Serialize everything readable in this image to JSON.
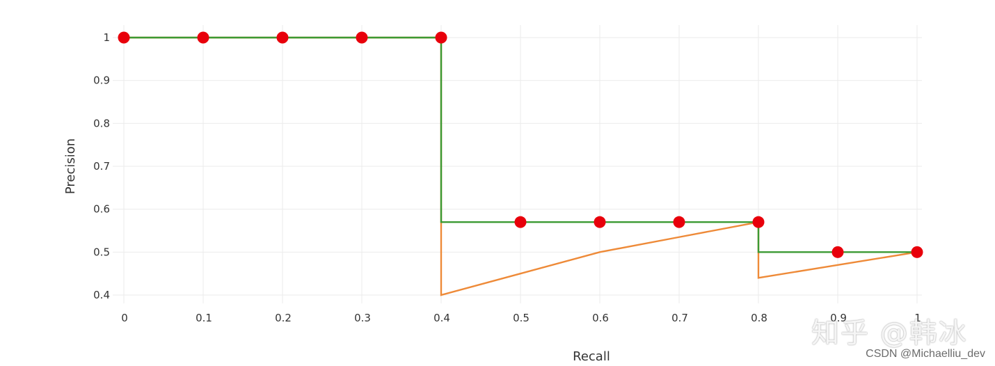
{
  "chart_data": {
    "type": "line",
    "title": "",
    "xlabel": "Recall",
    "ylabel": "Precision",
    "xlim": [
      0,
      1
    ],
    "ylim": [
      0.4,
      1
    ],
    "grid": true,
    "x_ticks": [
      "0",
      "0.1",
      "0.2",
      "0.3",
      "0.4",
      "0.5",
      "0.6",
      "0.7",
      "0.8",
      "0.9",
      "1"
    ],
    "y_ticks": [
      "0.4",
      "0.5",
      "0.6",
      "0.7",
      "0.8",
      "0.9",
      "1"
    ],
    "series": [
      {
        "kind": "line",
        "color": "#ee8a38",
        "x": [
          0,
          0.1,
          0.2,
          0.3,
          0.4,
          0.4,
          0.5,
          0.6,
          0.7,
          0.8,
          0.8,
          0.9,
          1
        ],
        "y": [
          1,
          1,
          1,
          1,
          1,
          0.4,
          0.45,
          0.5,
          0.535,
          0.57,
          0.44,
          0.47,
          0.5
        ]
      },
      {
        "kind": "step",
        "color": "#3b9a33",
        "x": [
          0,
          0.4,
          0.4,
          0.8,
          0.8,
          1
        ],
        "y": [
          1,
          1,
          0.57,
          0.57,
          0.5,
          0.5
        ]
      },
      {
        "kind": "scatter",
        "color": "#e8000b",
        "x": [
          0,
          0.1,
          0.2,
          0.3,
          0.4,
          0.5,
          0.6,
          0.7,
          0.8,
          0.9,
          1
        ],
        "y": [
          1,
          1,
          1,
          1,
          1,
          0.57,
          0.57,
          0.57,
          0.57,
          0.5,
          0.5
        ]
      }
    ]
  },
  "watermarks": {
    "zhihu": "知乎 @韩冰",
    "csdn": "CSDN @Michaelliu_dev"
  }
}
